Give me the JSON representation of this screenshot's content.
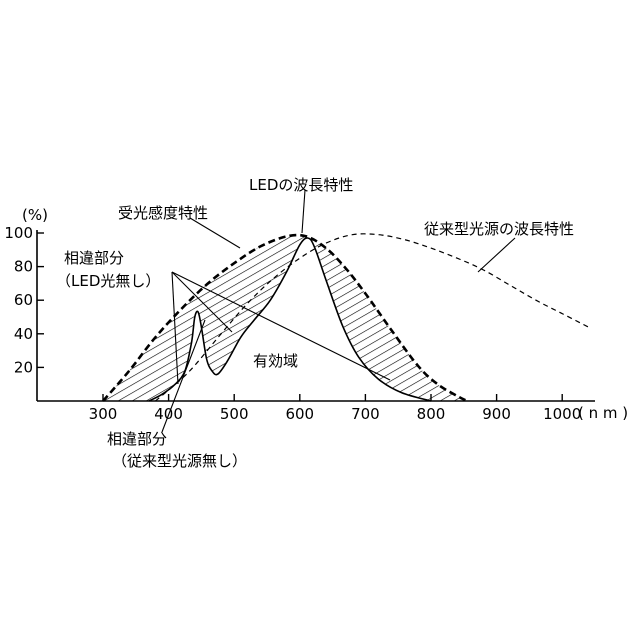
{
  "chart_data": {
    "type": "line",
    "x_unit": "( n m )",
    "y_unit": "(%)",
    "xlim": [
      200,
      1050
    ],
    "ylim": [
      0,
      100
    ],
    "x_ticks": [
      300,
      400,
      500,
      600,
      700,
      800,
      900,
      1000
    ],
    "y_ticks": [
      20,
      40,
      60,
      80,
      100
    ],
    "grid": false,
    "series": [
      {
        "name": "受光感度特性",
        "style": "dashed-bold",
        "points": [
          [
            300,
            0
          ],
          [
            340,
            18
          ],
          [
            380,
            38
          ],
          [
            420,
            55
          ],
          [
            460,
            70
          ],
          [
            500,
            82
          ],
          [
            540,
            92
          ],
          [
            580,
            98
          ],
          [
            610,
            98
          ],
          [
            640,
            91
          ],
          [
            670,
            79
          ],
          [
            700,
            64
          ],
          [
            740,
            42
          ],
          [
            780,
            21
          ],
          [
            810,
            10
          ],
          [
            840,
            3
          ],
          [
            855,
            0
          ]
        ]
      },
      {
        "name": "LEDの波長特性",
        "style": "solid",
        "points": [
          [
            370,
            0
          ],
          [
            390,
            4
          ],
          [
            410,
            10
          ],
          [
            425,
            18
          ],
          [
            435,
            35
          ],
          [
            440,
            50
          ],
          [
            445,
            53
          ],
          [
            450,
            44
          ],
          [
            458,
            25
          ],
          [
            466,
            18
          ],
          [
            475,
            16
          ],
          [
            490,
            24
          ],
          [
            510,
            38
          ],
          [
            530,
            48
          ],
          [
            555,
            60
          ],
          [
            580,
            77
          ],
          [
            600,
            93
          ],
          [
            612,
            97
          ],
          [
            622,
            92
          ],
          [
            640,
            72
          ],
          [
            665,
            45
          ],
          [
            690,
            26
          ],
          [
            720,
            13
          ],
          [
            755,
            5
          ],
          [
            800,
            0
          ]
        ]
      },
      {
        "name": "従来型光源の波長特性",
        "style": "dashed-thin",
        "points": [
          [
            380,
            0
          ],
          [
            430,
            17
          ],
          [
            480,
            40
          ],
          [
            520,
            58
          ],
          [
            560,
            73
          ],
          [
            600,
            85
          ],
          [
            640,
            94
          ],
          [
            680,
            99
          ],
          [
            720,
            99
          ],
          [
            760,
            96
          ],
          [
            800,
            91
          ],
          [
            840,
            85
          ],
          [
            880,
            78
          ],
          [
            920,
            69
          ],
          [
            960,
            60
          ],
          [
            1000,
            52
          ],
          [
            1040,
            44
          ]
        ]
      }
    ],
    "annotations": {
      "led_label": "LEDの波長特性",
      "sensitivity_label": "受光感度特性",
      "conventional_label": "従来型光源の波長特性",
      "diff_no_led_line1": "相違部分",
      "diff_no_led_line2": "（LED光無し）",
      "diff_no_conv_line1": "相違部分",
      "diff_no_conv_line2": "（従来型光源無し）",
      "effective_region": "有効域"
    }
  }
}
